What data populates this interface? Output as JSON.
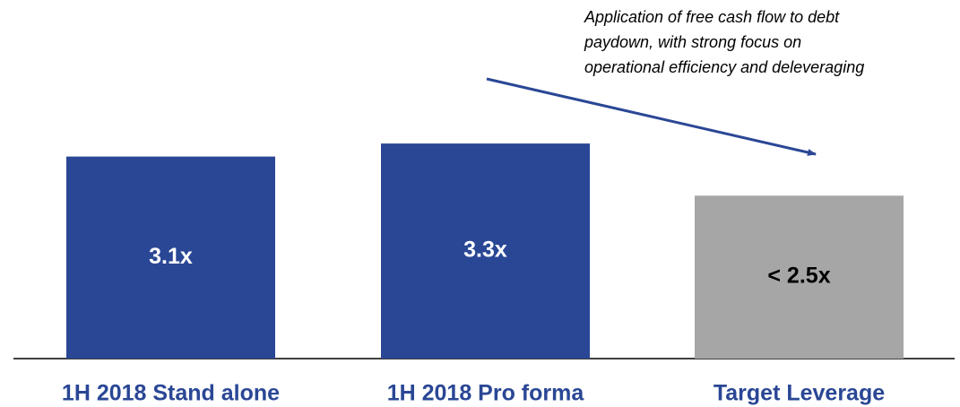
{
  "chart_data": {
    "type": "bar",
    "annotation": [
      "Application of free cash flow to debt",
      "paydown, with strong focus on",
      "operational efficiency and deleveraging"
    ],
    "categories": [
      "1H 2018 Stand alone",
      "1H 2018 Pro forma",
      "Target Leverage"
    ],
    "values": [
      3.1,
      3.3,
      2.5
    ],
    "value_labels": [
      "3.1x",
      "3.3x",
      "< 2.5x"
    ],
    "colors": [
      "#2a4795",
      "#2a4795",
      "#a6a6a6"
    ]
  }
}
